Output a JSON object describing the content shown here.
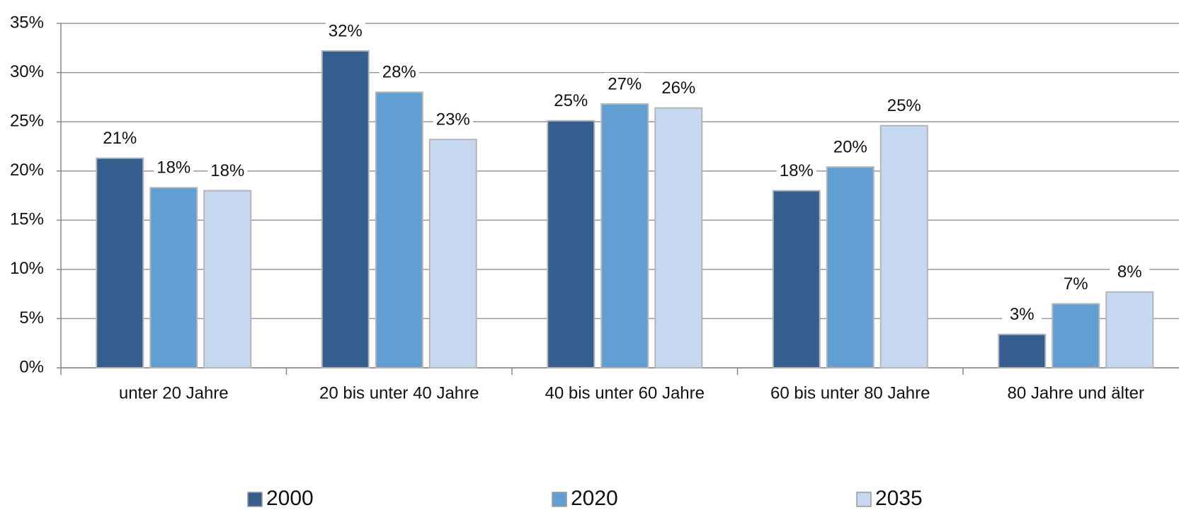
{
  "chart_data": {
    "type": "bar",
    "categories": [
      "unter 20 Jahre",
      "20 bis unter 40 Jahre",
      "40 bis unter 60 Jahre",
      "60 bis unter 80 Jahre",
      "80 Jahre und älter"
    ],
    "series": [
      {
        "name": "2000",
        "color": "#355e8f",
        "values": [
          21.3,
          32.2,
          25.1,
          18.0,
          3.4
        ],
        "value_labels": [
          "21%",
          "32%",
          "25%",
          "18%",
          "3%"
        ]
      },
      {
        "name": "2020",
        "color": "#619fd2",
        "values": [
          18.3,
          28.0,
          26.8,
          20.4,
          6.5
        ],
        "value_labels": [
          "18%",
          "28%",
          "27%",
          "20%",
          "7%"
        ]
      },
      {
        "name": "2035",
        "color": "#c6d8f0",
        "values": [
          18.0,
          23.2,
          26.4,
          24.6,
          7.7
        ],
        "value_labels": [
          "18%",
          "23%",
          "26%",
          "25%",
          "8%"
        ]
      }
    ],
    "ylim": [
      0,
      35
    ],
    "yticks": [
      {
        "value": 0,
        "label": "0%"
      },
      {
        "value": 5,
        "label": "5%"
      },
      {
        "value": 10,
        "label": "10%"
      },
      {
        "value": 15,
        "label": "15%"
      },
      {
        "value": 20,
        "label": "20%"
      },
      {
        "value": 25,
        "label": "25%"
      },
      {
        "value": 30,
        "label": "30%"
      },
      {
        "value": 35,
        "label": "35%"
      }
    ],
    "grid": true,
    "legend": "bottom"
  }
}
